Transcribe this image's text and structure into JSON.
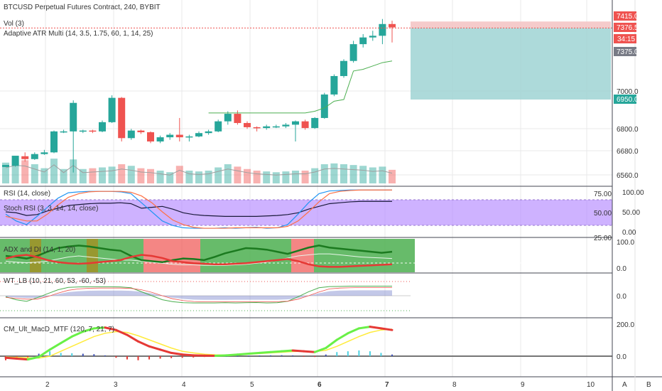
{
  "header": {
    "title": "BTCUSD Perpetual Futures Contract, 240, BYBIT",
    "vol": "Vol (3)",
    "atr": "Adaptive ATR Multi (14, 3.5, 1.75, 60, 1, 14, 25)"
  },
  "pane_labels": {
    "rsi": "RSI (14, close)",
    "stoch": "Stoch RSI (3, 3, 14, 14, close)",
    "adx": "ADX and DI (14, 1, 20)",
    "wt": "WT_LB (10, 21, 60, 53, -60, -53)",
    "macd": "CM_Ult_MacD_MTF (120, 7, 21, 7)"
  },
  "price_axis": {
    "ticks": [
      "7000.0",
      "6800.0",
      "6680.0",
      "6560.0"
    ],
    "tags": [
      {
        "label": "7415.0",
        "bg": "#ef5350"
      },
      {
        "label": "7376.5",
        "bg": "#ef5350"
      },
      {
        "label": "34:15",
        "bg": "#ef5350"
      },
      {
        "label": "7375.0",
        "bg": "#787b86"
      },
      {
        "label": "6950.0",
        "bg": "#26a69a"
      }
    ]
  },
  "rsi_axis": {
    "left_ticks": [
      "75.00",
      "50.00",
      "25.00"
    ],
    "right_ticks": [
      "100.00",
      "50.00",
      "0.00"
    ]
  },
  "adx_axis": {
    "ticks": [
      "100.0",
      "0.0"
    ]
  },
  "wt_axis": {
    "ticks": [
      "0.0"
    ]
  },
  "macd_axis": {
    "ticks": [
      "200.0",
      "0.0"
    ]
  },
  "time_axis": {
    "labels": [
      "2",
      "3",
      "4",
      "5",
      "6",
      "7",
      "8",
      "9",
      "10"
    ],
    "bold": [
      "6",
      "7"
    ]
  },
  "right_columns": {
    "a": "A",
    "b": "B"
  },
  "colors": {
    "up": "#26a69a",
    "down": "#ef5350",
    "grid": "#e9e9ea",
    "stoch_band": "#b388ff",
    "position_zone": "#9fd3d4"
  },
  "chart_data": {
    "type": "candlestick",
    "x_unit": "day",
    "price_range": [
      6450,
      7450
    ],
    "candles": [
      [
        6548,
        6560,
        6548,
        6555,
        130
      ],
      [
        6555,
        6615,
        6550,
        6612,
        150
      ],
      [
        6612,
        6595,
        6580,
        6635,
        145
      ],
      [
        6595,
        6625,
        6590,
        6635,
        120
      ],
      [
        6625,
        6635,
        6620,
        6650,
        95
      ],
      [
        6635,
        6760,
        6630,
        6765,
        155
      ],
      [
        6760,
        6760,
        6750,
        6770,
        90
      ],
      [
        6760,
        6930,
        6515,
        6945,
        150
      ],
      [
        6760,
        6765,
        6750,
        6770,
        90
      ],
      [
        6765,
        6760,
        6750,
        6770,
        95
      ],
      [
        6760,
        6815,
        6755,
        6825,
        100
      ],
      [
        6815,
        6960,
        6810,
        6975,
        105
      ],
      [
        6960,
        6720,
        6700,
        6965,
        120
      ],
      [
        6720,
        6765,
        6710,
        6775,
        110
      ],
      [
        6765,
        6755,
        6745,
        6770,
        95
      ],
      [
        6755,
        6700,
        6690,
        6760,
        90
      ],
      [
        6700,
        6725,
        6690,
        6735,
        80
      ],
      [
        6725,
        6740,
        6710,
        6750,
        70
      ],
      [
        6740,
        6725,
        6700,
        6840,
        110
      ],
      [
        6725,
        6730,
        6700,
        6740,
        80
      ],
      [
        6730,
        6750,
        6725,
        6760,
        75
      ],
      [
        6750,
        6760,
        6740,
        6770,
        80
      ],
      [
        6760,
        6820,
        6755,
        6830,
        100
      ],
      [
        6820,
        6865,
        6800,
        6880,
        120
      ],
      [
        6865,
        6810,
        6800,
        6885,
        105
      ],
      [
        6810,
        6785,
        6775,
        6820,
        90
      ],
      [
        6785,
        6780,
        6760,
        6790,
        80
      ],
      [
        6780,
        6790,
        6770,
        6800,
        75
      ],
      [
        6790,
        6790,
        6780,
        6800,
        70
      ],
      [
        6790,
        6800,
        6780,
        6810,
        75
      ],
      [
        6800,
        6820,
        6700,
        6825,
        80
      ],
      [
        6820,
        6780,
        6770,
        6830,
        80
      ],
      [
        6780,
        6840,
        6775,
        6845,
        95
      ],
      [
        6840,
        6980,
        6835,
        6990,
        120
      ],
      [
        6980,
        7090,
        6970,
        7100,
        125
      ],
      [
        7090,
        7180,
        7080,
        7190,
        120
      ],
      [
        7180,
        7280,
        7170,
        7300,
        115
      ],
      [
        7280,
        7320,
        7260,
        7340,
        110
      ],
      [
        7320,
        7330,
        7300,
        7360,
        100
      ],
      [
        7330,
        7400,
        7280,
        7430,
        105
      ],
      [
        7400,
        7380,
        7290,
        7420,
        85
      ]
    ],
    "stop_line": [
      6870,
      6870,
      6870,
      6870,
      6870,
      6870,
      6870,
      6870,
      6870,
      6870,
      6870,
      6880,
      6900,
      6940,
      6950,
      7120,
      7130,
      7150,
      7170,
      7180
    ],
    "stop_line_start": 21,
    "position": {
      "entry": 7376.5,
      "target": 6950.0,
      "stop": 7415.0
    },
    "rsi": [
      50,
      48,
      42,
      44,
      52,
      58,
      64,
      66,
      68,
      69,
      69,
      70,
      68,
      58,
      60,
      62,
      56,
      48,
      44,
      42,
      41,
      40,
      40,
      40,
      40,
      41,
      42,
      44,
      48,
      56,
      62,
      68,
      70,
      72,
      73,
      73,
      73,
      73
    ],
    "stoch_k": [
      45,
      30,
      22,
      40,
      60,
      80,
      92,
      94,
      95,
      95,
      95,
      94,
      90,
      70,
      50,
      30,
      20,
      15,
      14,
      14,
      14,
      15,
      14,
      15,
      16,
      14,
      15,
      22,
      45,
      70,
      90,
      96,
      97,
      98,
      98,
      98,
      98,
      98
    ],
    "stoch_d": [
      40,
      35,
      30,
      30,
      45,
      65,
      82,
      90,
      94,
      95,
      95,
      95,
      93,
      85,
      70,
      50,
      32,
      22,
      16,
      14,
      14,
      14,
      15,
      15,
      15,
      15,
      15,
      18,
      30,
      50,
      72,
      90,
      95,
      97,
      98,
      98,
      98,
      98
    ],
    "adx": [
      20,
      18,
      17,
      18,
      20,
      24,
      28,
      30,
      28,
      26,
      24,
      22,
      22,
      20,
      18,
      16,
      14,
      13,
      13,
      12,
      12,
      12,
      13,
      14,
      16,
      18,
      22,
      26,
      30,
      32,
      34,
      34,
      32,
      30,
      28,
      27,
      26,
      25
    ],
    "di_plus": [
      30,
      28,
      25,
      30,
      38,
      45,
      48,
      50,
      48,
      45,
      42,
      40,
      30,
      22,
      20,
      18,
      22,
      25,
      24,
      22,
      28,
      35,
      40,
      45,
      44,
      42,
      38,
      34,
      40,
      46,
      50,
      46,
      44,
      42,
      40,
      38,
      36,
      38
    ],
    "di_minus": [
      25,
      30,
      32,
      28,
      22,
      18,
      16,
      15,
      16,
      18,
      20,
      22,
      28,
      32,
      30,
      26,
      20,
      18,
      16,
      15,
      14,
      14,
      15,
      16,
      18,
      20,
      22,
      24,
      20,
      14,
      10,
      9,
      9,
      10,
      11,
      12,
      13,
      14
    ],
    "macd": [
      -10,
      -15,
      -20,
      -5,
      40,
      80,
      120,
      150,
      170,
      175,
      160,
      130,
      90,
      60,
      40,
      20,
      10,
      5,
      3,
      2,
      5,
      10,
      15,
      20,
      25,
      30,
      35,
      30,
      25,
      50,
      100,
      140,
      170,
      180,
      170,
      160
    ],
    "macd_signal": [
      -5,
      -8,
      -10,
      -12,
      0,
      30,
      60,
      90,
      120,
      140,
      150,
      145,
      125,
      100,
      75,
      50,
      30,
      20,
      12,
      8,
      6,
      8,
      12,
      16,
      20,
      24,
      28,
      30,
      28,
      36,
      60,
      90,
      120,
      145,
      160,
      165
    ],
    "macd_hist": [
      -25,
      -20,
      -15,
      15,
      30,
      20,
      18,
      15,
      12,
      5,
      -10,
      -20,
      -25,
      -20,
      -15,
      -12,
      -10,
      -8,
      -5,
      -3,
      0,
      2,
      3,
      4,
      5,
      6,
      5,
      -2,
      -5,
      10,
      25,
      30,
      35,
      30,
      20,
      10
    ]
  }
}
